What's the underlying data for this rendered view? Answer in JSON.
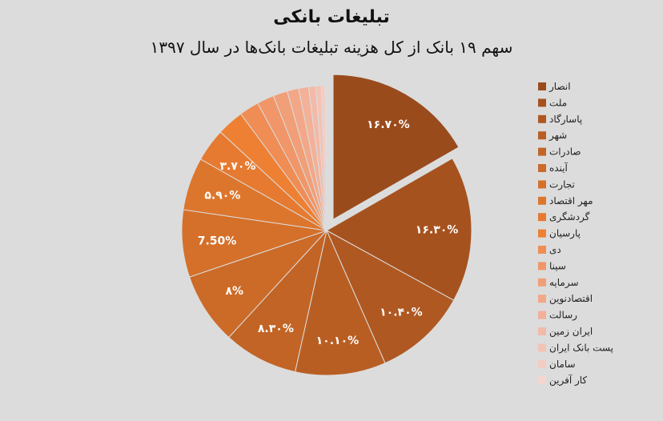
{
  "chart_data": {
    "type": "pie",
    "title": "تبلیغات بانکی",
    "subtitle": "سهم ۱۹ بانک از کل هزینه تبلیغات بانک‌ها در سال ۱۳۹۷",
    "legend_position": "right",
    "exploded_slice": 0,
    "slices": [
      {
        "name": "انصار",
        "value": 16.7,
        "label": "۱۶.۷۰%",
        "color": "#9a4b1c"
      },
      {
        "name": "ملت",
        "value": 16.3,
        "label": "۱۶.۳۰%",
        "color": "#a6521f"
      },
      {
        "name": "پاسارگاد",
        "value": 10.4,
        "label": "۱۰.۴۰%",
        "color": "#af5821"
      },
      {
        "name": "شهر",
        "value": 10.1,
        "label": "۱۰.۱۰%",
        "color": "#b95e23"
      },
      {
        "name": "صادرات",
        "value": 8.3,
        "label": "۸.۳۰%",
        "color": "#c26425"
      },
      {
        "name": "آینده",
        "value": 8,
        "label": "۸%",
        "color": "#cc6a28"
      },
      {
        "name": "تجارت",
        "value": 7.5,
        "label": "7.50%",
        "color": "#d4702a"
      },
      {
        "name": "مهر اقتصاد",
        "value": 5.9,
        "label": "۵.۹۰%",
        "color": "#dd762d"
      },
      {
        "name": "گردشگری",
        "value": 3.7,
        "label": "۳.۷۰%",
        "color": "#e57a30"
      },
      {
        "name": "پارسیان",
        "value": 3,
        "label": "",
        "color": "#ee8033"
      },
      {
        "name": "دی",
        "value": 2.2,
        "label": "",
        "color": "#ef8d55"
      },
      {
        "name": "سینا",
        "value": 1.9,
        "label": "",
        "color": "#f09668"
      },
      {
        "name": "سرمایه",
        "value": 1.6,
        "label": "",
        "color": "#f19f78"
      },
      {
        "name": "اقتصادنوین",
        "value": 1.3,
        "label": "",
        "color": "#f2a888"
      },
      {
        "name": "رسالت",
        "value": 1.1,
        "label": "",
        "color": "#f2b198"
      },
      {
        "name": "ایران زمین",
        "value": 0.8,
        "label": "",
        "color": "#f3baa8"
      },
      {
        "name": "پست بانک ایران",
        "value": 0.6,
        "label": "",
        "color": "#f3c3b6"
      },
      {
        "name": "سامان",
        "value": 0.4,
        "label": "",
        "color": "#f4ccc2"
      },
      {
        "name": "کار آفرین",
        "value": 0.2,
        "label": "",
        "color": "#f5d6ce"
      }
    ]
  }
}
